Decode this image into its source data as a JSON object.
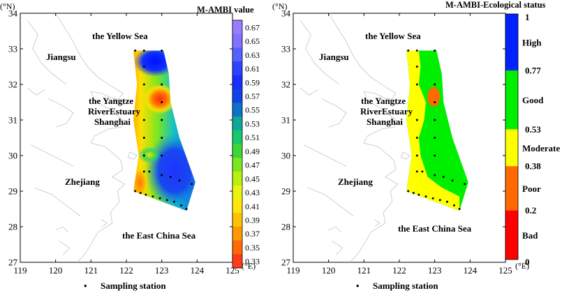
{
  "left_panel": {
    "lat_unit": "(°N)",
    "lon_unit": "(°E)",
    "lat_ticks": [
      "34",
      "33",
      "32",
      "31",
      "30",
      "29",
      "28",
      "27"
    ],
    "lon_ticks": [
      "119",
      "120",
      "121",
      "122",
      "123",
      "124",
      "125"
    ],
    "labels": {
      "yellow_sea": "the Yellow Sea",
      "jiangsu": "Jiangsu",
      "yangtze_1": "the Yangtze",
      "yangtze_2": "RiverEstuary",
      "shanghai": "Shanghai",
      "zhejiang": "Zhejiang",
      "east_china_sea": "the East China Sea"
    },
    "legend_title": "M-AMBI value",
    "colorbar_ticks": [
      "0.67",
      "0.65",
      "0.63",
      "0.61",
      "0.59",
      "0.57",
      "0.55",
      "0.53",
      "0.51",
      "0.49",
      "0.47",
      "0.45",
      "0.43",
      "0.41",
      "0.39",
      "0.37",
      "0.35",
      "0.33"
    ],
    "colorbar_colors": [
      "#9A7DFF",
      "#7E72FF",
      "#5560FF",
      "#2C44FF",
      "#1A2EFF",
      "#0F43E8",
      "#0E72C8",
      "#0EA79A",
      "#17C96A",
      "#3DD63A",
      "#7CE61F",
      "#B8F012",
      "#E9F50C",
      "#FFE608",
      "#FFC106",
      "#FF9806",
      "#FF6A08",
      "#FF3A1A"
    ],
    "caption": "Sampling station"
  },
  "right_panel": {
    "lat_unit": "(°N)",
    "lon_unit": "(°E)",
    "lat_ticks": [
      "34",
      "33",
      "32",
      "31",
      "30",
      "29",
      "28",
      "27"
    ],
    "lon_ticks": [
      "119",
      "120",
      "121",
      "122",
      "123",
      "124",
      "125"
    ],
    "labels": {
      "yellow_sea": "the Yellow Sea",
      "jiangsu": "Jiangsu",
      "yangtze_1": "the Yangtze",
      "yangtze_2": "RiverEstuary",
      "shanghai": "Shanghai",
      "zhejiang": "Zhejiang",
      "east_china_sea": "the East China Sea"
    },
    "legend_title": "M-AMBI-Ecological status",
    "status_bounds": [
      "1",
      "0.77",
      "0.53",
      "0.38",
      "0.2",
      "0"
    ],
    "status_classes": [
      {
        "name": "High",
        "color": "#0022FF",
        "from": 0.77,
        "to": 1.0
      },
      {
        "name": "Good",
        "color": "#00EE00",
        "from": 0.53,
        "to": 0.77
      },
      {
        "name": "Moderate",
        "color": "#FFFF00",
        "from": 0.38,
        "to": 0.53
      },
      {
        "name": "Poor",
        "color": "#FF6A00",
        "from": 0.2,
        "to": 0.38
      },
      {
        "name": "Bad",
        "color": "#FF0000",
        "from": 0.0,
        "to": 0.2
      }
    ],
    "caption": "Sampling station"
  },
  "stations": [
    [
      122.25,
      32.95
    ],
    [
      122.5,
      32.95
    ],
    [
      123.0,
      32.95
    ],
    [
      122.5,
      32.5
    ],
    [
      122.5,
      32.0
    ],
    [
      123.0,
      32.0
    ],
    [
      123.0,
      31.5
    ],
    [
      122.5,
      31.0
    ],
    [
      123.0,
      31.0
    ],
    [
      122.5,
      30.5
    ],
    [
      123.0,
      30.5
    ],
    [
      122.5,
      30.0
    ],
    [
      123.0,
      30.0
    ],
    [
      122.5,
      29.55
    ],
    [
      122.65,
      29.55
    ],
    [
      123.0,
      29.45
    ],
    [
      123.25,
      29.4
    ],
    [
      123.5,
      29.3
    ],
    [
      123.85,
      29.2
    ],
    [
      122.25,
      29.0
    ],
    [
      122.4,
      28.95
    ],
    [
      122.55,
      28.9
    ],
    [
      122.75,
      28.85
    ],
    [
      122.95,
      28.8
    ],
    [
      123.15,
      28.75
    ],
    [
      123.35,
      28.7
    ],
    [
      123.55,
      28.6
    ],
    [
      123.7,
      28.5
    ]
  ]
}
